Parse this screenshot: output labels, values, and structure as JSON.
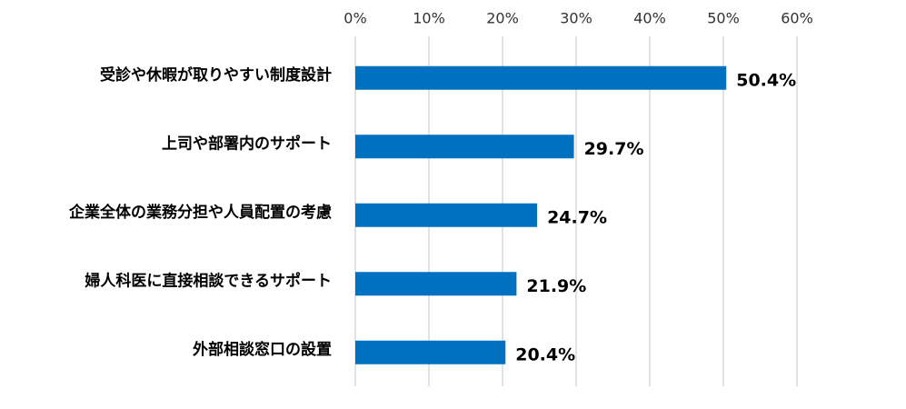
{
  "chart_data": {
    "type": "bar",
    "orientation": "horizontal",
    "categories": [
      "受診や休暇が取りやすい制度設計",
      "上司や部署内のサポート",
      "企業全体の業務分担や人員配置の考慮",
      "婦人科医に直接相談できるサポート",
      "外部相談窓口の設置"
    ],
    "values": [
      50.4,
      29.7,
      24.7,
      21.9,
      20.4
    ],
    "value_labels": [
      "50.4%",
      "29.7%",
      "24.7%",
      "21.9%",
      "20.4%"
    ],
    "color": "#0070c0",
    "xlim": [
      0,
      60
    ],
    "xticks": [
      {
        "value": 0,
        "label": "0%"
      },
      {
        "value": 10,
        "label": "10%"
      },
      {
        "value": 20,
        "label": "20%"
      },
      {
        "value": 30,
        "label": "30%"
      },
      {
        "value": 40,
        "label": "40%"
      },
      {
        "value": 50,
        "label": "50%"
      },
      {
        "value": 60,
        "label": "60%"
      }
    ],
    "grid": true
  }
}
